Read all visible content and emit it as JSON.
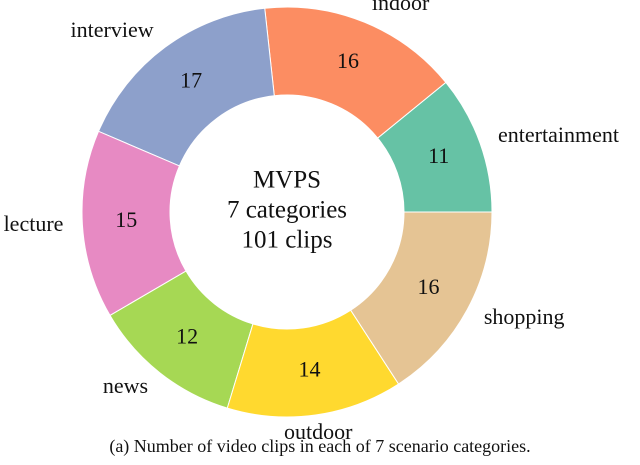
{
  "chart_data": {
    "type": "donut",
    "categories": [
      "entertainment",
      "indoor",
      "interview",
      "lecture",
      "news",
      "outdoor",
      "shopping"
    ],
    "values": [
      11,
      16,
      17,
      15,
      12,
      14,
      16
    ],
    "colors": [
      "#66c2a5",
      "#fc8d62",
      "#8da0cb",
      "#e78ac3",
      "#a6d854",
      "#ffd92f",
      "#e5c494"
    ],
    "center_text": [
      "MVPS",
      "7 categories",
      "101 clips"
    ],
    "caption": "(a) Number of video clips in each of 7 scenario categories."
  }
}
